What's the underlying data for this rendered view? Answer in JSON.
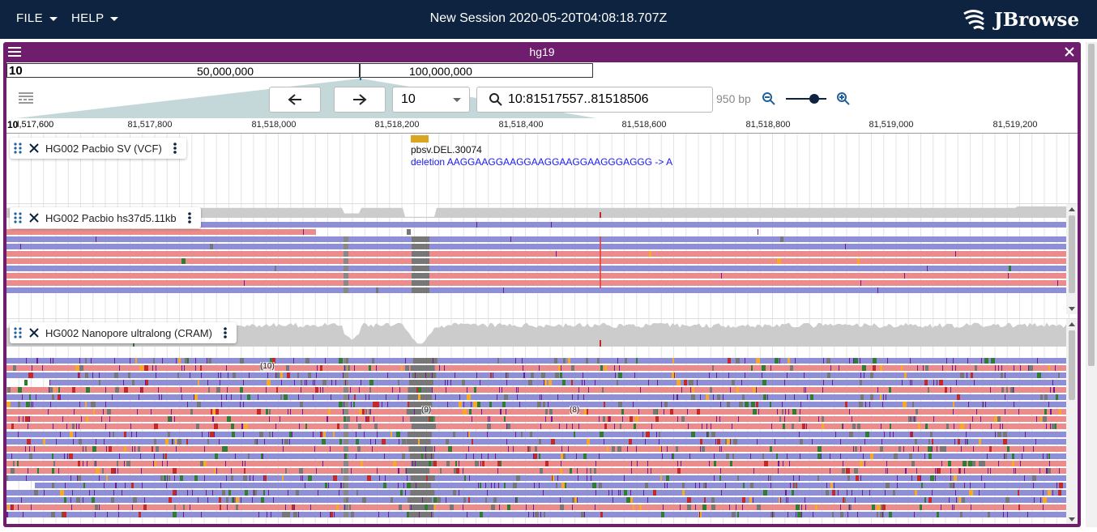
{
  "appbar": {
    "file_menu": "FILE",
    "help_menu": "HELP",
    "session_title": "New Session 2020-05-20T04:08:18.707Z",
    "brand": "JBrowse"
  },
  "view": {
    "title": "hg19",
    "overview": {
      "chrom": "10",
      "marks": [
        "50,000,000",
        "100,000,000"
      ]
    },
    "controls": {
      "back_icon": "arrow-left-icon",
      "forward_icon": "arrow-right-icon",
      "chrom_select": "10",
      "locstring": "10:81517557..81518506",
      "bp_label": "950 bp",
      "zoom_level": 0.7
    },
    "ruler": {
      "first": "10",
      "first_suffix": "l,517,600",
      "ticks": [
        "81,517,800",
        "81,518,000",
        "81,518,200",
        "81,518,400",
        "81,518,600",
        "81,518,800",
        "81,519,000",
        "81,519,200"
      ]
    },
    "tracks": [
      {
        "name": "HG002 Pacbio SV (VCF)",
        "feature_name": "pbsv.DEL.30074",
        "feature_desc": "deletion AAGGAAGGAAGGAAGGAAGGAAGGGAGGG -> A"
      },
      {
        "name": "HG002 Pacbio hs37d5.11kb"
      },
      {
        "name": "HG002 Nanopore ultralong (CRAM)"
      }
    ],
    "insertion_labels": [
      "(10)",
      "(9)",
      "(8)"
    ]
  },
  "colors": {
    "appbar": "#0d233f",
    "view_header": "#6f1d6d",
    "read_forward": "#ec8b8b",
    "read_reverse": "#8f8fd8",
    "coverage": "#cccccc",
    "vcf_feature": "#daa520",
    "feature_desc": "#0000ee"
  }
}
